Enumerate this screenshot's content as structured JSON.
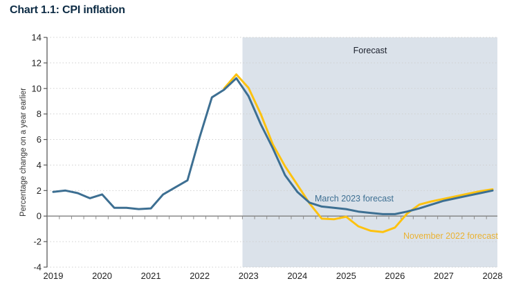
{
  "header": {
    "title": "Chart 1.1: CPI inflation"
  },
  "chart_data": {
    "type": "line",
    "title": "Chart 1.1: CPI inflation",
    "ylabel": "Percentage change on a year earlier",
    "ylim": [
      -4,
      14
    ],
    "ytick_step": 2,
    "ytick_labels": [
      "14",
      "12",
      "10",
      "8",
      "6",
      "4",
      "2",
      "0",
      "-2",
      "-4"
    ],
    "x_tick_labels": [
      "2019",
      "2020",
      "2021",
      "2022",
      "2023",
      "2024",
      "2025",
      "2026",
      "2027",
      "2028"
    ],
    "x_start_year": 2019,
    "quarters_per_year": 4,
    "grid": "dotted horizontal gridlines, solid zero axis",
    "legend_position": "inline labels on lines",
    "forecast_region": {
      "label": "Forecast",
      "start": "2023 Q1",
      "shade_color": "#dbe2ea"
    },
    "series": [
      {
        "name": "November 2022 forecast",
        "color": "#fdc20f",
        "label_color": "#eab232",
        "start_quarter_index": 14,
        "start_quarter": "2022 Q3",
        "values": [
          10.0,
          11.1,
          10.05,
          8.0,
          5.6,
          3.9,
          2.45,
          1.0,
          -0.2,
          -0.25,
          -0.05,
          -0.8,
          -1.15,
          -1.25,
          -0.9,
          0.2,
          0.9,
          1.15,
          1.35,
          1.55,
          1.75,
          1.95,
          2.1
        ]
      },
      {
        "name": "March 2023 forecast",
        "color": "#3d6f92",
        "label_color": "#3d6f92",
        "start_quarter_index": 0,
        "start_quarter": "2019 Q1",
        "values": [
          1.9,
          2.0,
          1.8,
          1.4,
          1.7,
          0.65,
          0.65,
          0.55,
          0.6,
          1.7,
          2.25,
          2.8,
          6.2,
          9.3,
          9.9,
          10.8,
          9.4,
          7.2,
          5.3,
          3.2,
          1.9,
          1.05,
          0.75,
          0.65,
          0.55,
          0.35,
          0.25,
          0.15,
          0.15,
          0.35,
          0.6,
          0.9,
          1.2,
          1.4,
          1.6,
          1.8,
          2.0
        ]
      }
    ]
  }
}
